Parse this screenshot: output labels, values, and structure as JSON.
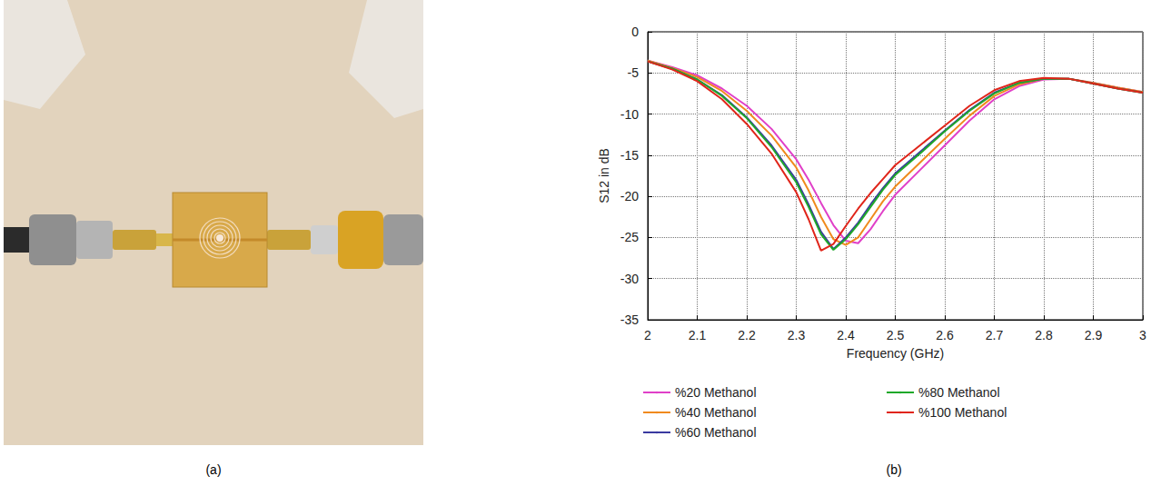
{
  "photo": {
    "label": "(a)"
  },
  "chart_data": {
    "type": "line",
    "caption": "(b)",
    "xlabel": "Frequency (GHz)",
    "ylabel": "S12 in dB",
    "x": [
      2,
      2.05,
      2.1,
      2.15,
      2.2,
      2.25,
      2.3,
      2.325,
      2.35,
      2.375,
      2.4,
      2.425,
      2.45,
      2.475,
      2.5,
      2.55,
      2.6,
      2.65,
      2.7,
      2.75,
      2.8,
      2.85,
      2.9,
      2.95,
      3
    ],
    "series": [
      {
        "name": "%20 Methanol",
        "color": "#e040c8",
        "values": [
          -3.5,
          -4.3,
          -5.3,
          -6.9,
          -9.0,
          -11.8,
          -15.5,
          -18.0,
          -20.8,
          -23.5,
          -25.4,
          -25.7,
          -24.0,
          -21.8,
          -19.8,
          -16.8,
          -13.8,
          -10.8,
          -8.2,
          -6.6,
          -5.8,
          -5.7,
          -6.2,
          -6.8,
          -7.3
        ]
      },
      {
        "name": "%40 Methanol",
        "color": "#f08a1e",
        "values": [
          -3.5,
          -4.4,
          -5.5,
          -7.2,
          -9.6,
          -12.6,
          -16.5,
          -19.3,
          -22.5,
          -25.2,
          -25.9,
          -25.0,
          -22.8,
          -20.6,
          -18.8,
          -15.9,
          -13.0,
          -10.2,
          -7.8,
          -6.4,
          -5.7,
          -5.7,
          -6.2,
          -6.8,
          -7.3
        ]
      },
      {
        "name": "%60 Methanol",
        "color": "#3a3aa0",
        "values": [
          -3.6,
          -4.5,
          -5.8,
          -7.7,
          -10.4,
          -13.8,
          -18.0,
          -21.0,
          -24.3,
          -26.4,
          -25.0,
          -23.2,
          -21.0,
          -19.0,
          -17.2,
          -14.6,
          -12.0,
          -9.5,
          -7.4,
          -6.2,
          -5.7,
          -5.7,
          -6.3,
          -6.9,
          -7.4
        ]
      },
      {
        "name": "%80 Methanol",
        "color": "#1fa82a",
        "values": [
          -3.6,
          -4.5,
          -5.8,
          -7.8,
          -10.5,
          -14.0,
          -18.3,
          -21.3,
          -24.6,
          -26.5,
          -25.2,
          -23.4,
          -21.3,
          -19.2,
          -17.4,
          -14.8,
          -12.1,
          -9.6,
          -7.5,
          -6.2,
          -5.7,
          -5.7,
          -6.3,
          -6.9,
          -7.4
        ]
      },
      {
        "name": "%100 Methanol",
        "color": "#e0251a",
        "values": [
          -3.6,
          -4.6,
          -6.0,
          -8.2,
          -11.2,
          -14.8,
          -19.5,
          -22.8,
          -26.6,
          -25.8,
          -23.6,
          -21.5,
          -19.6,
          -17.9,
          -16.2,
          -13.8,
          -11.4,
          -9.0,
          -7.1,
          -6.0,
          -5.6,
          -5.7,
          -6.3,
          -6.9,
          -7.4
        ]
      }
    ],
    "xlim": [
      2,
      3
    ],
    "xticks": [
      2,
      2.1,
      2.2,
      2.3,
      2.4,
      2.5,
      2.6,
      2.7,
      2.8,
      2.9,
      3
    ],
    "ylim": [
      -35,
      0
    ],
    "yticks": [
      -35,
      -30,
      -25,
      -20,
      -15,
      -10,
      -5,
      0
    ],
    "grid": true,
    "legend": "bottom"
  }
}
